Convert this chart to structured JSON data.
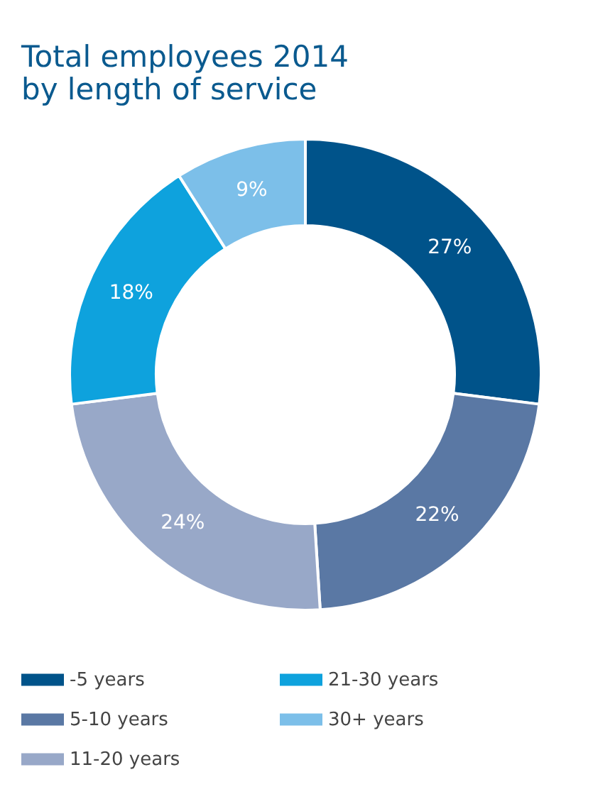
{
  "chart_data": {
    "type": "donut",
    "title": [
      "Total employees 2014",
      "by length of service"
    ],
    "categories": [
      "-5 years",
      "5-10 years",
      "11-20 years",
      "21-30 years",
      "30+ years"
    ],
    "values": [
      27,
      22,
      24,
      18,
      9
    ],
    "colors": [
      "#00538a",
      "#5a78a4",
      "#98a8c8",
      "#0ea2dd",
      "#7cbfe9"
    ],
    "value_labels": [
      "27%",
      "22%",
      "24%",
      "18%",
      "9%"
    ],
    "legend": "bottom"
  }
}
